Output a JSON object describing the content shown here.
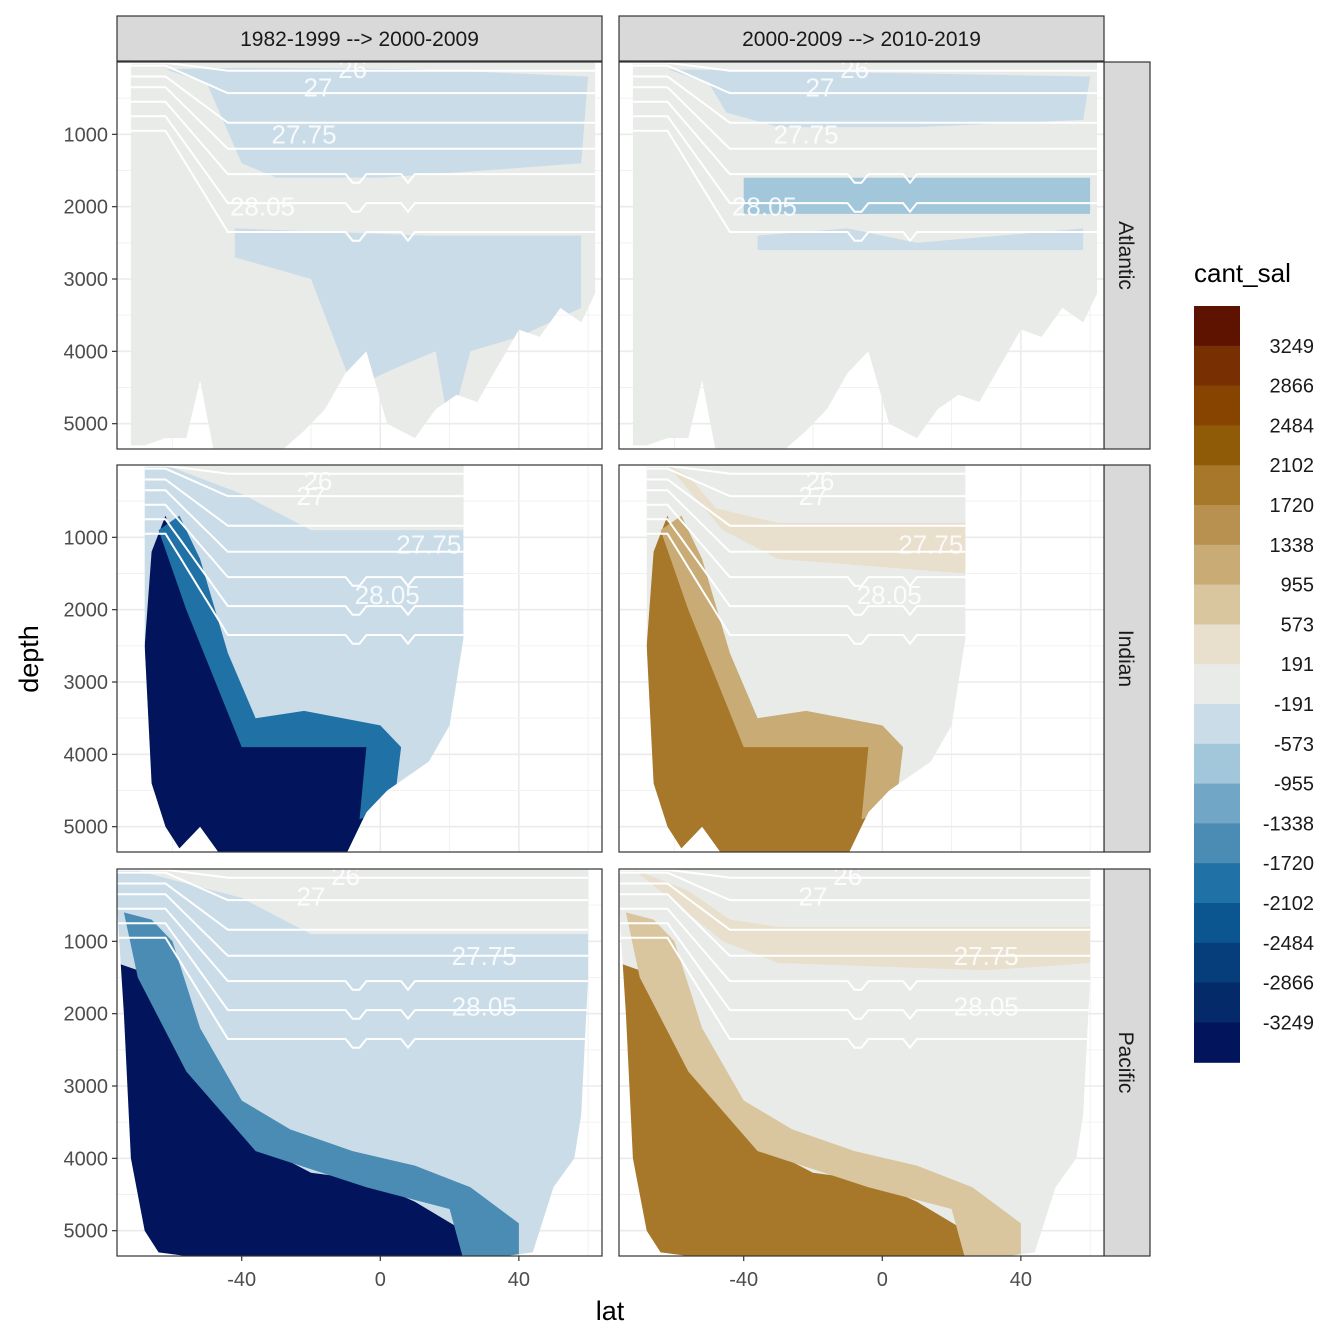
{
  "chart_data": {
    "type": "heatmap",
    "facet_columns": [
      "1982-1999 --> 2000-2009",
      "2000-2009 --> 2010-2019"
    ],
    "facet_rows": [
      "Atlantic",
      "Indian",
      "Pacific"
    ],
    "xlabel": "lat",
    "ylabel": "depth",
    "x_ticks": [
      "-40",
      "0",
      "40"
    ],
    "y_ticks": [
      "1000",
      "2000",
      "3000",
      "4000",
      "5000"
    ],
    "xlim": [
      -76,
      64
    ],
    "ylim_depth": [
      5350,
      0
    ],
    "grid": true,
    "legend": {
      "title": "cant_sal",
      "position": "right",
      "breaks": [
        "3249",
        "2866",
        "2484",
        "2102",
        "1720",
        "1338",
        "955",
        "573",
        "191",
        "-191",
        "-573",
        "-955",
        "-1338",
        "-1720",
        "-2102",
        "-2484",
        "-2866",
        "-3249"
      ],
      "colors": [
        "#5e1300",
        "#782f02",
        "#874400",
        "#8f5b06",
        "#a8782a",
        "#b89150",
        "#c8ab75",
        "#d9c59e",
        "#e8dfcc",
        "#e9ebe8",
        "#c9dce8",
        "#a2c6da",
        "#71a6c7",
        "#4a8cb4",
        "#2071a6",
        "#0b5590",
        "#063e7c",
        "#042a6a",
        "#02155c"
      ]
    },
    "isopycnal_labels": [
      "26",
      "27",
      "27.75",
      "28.05"
    ],
    "panels": [
      {
        "basin": "Atlantic",
        "period": "1982-1999 --> 2000-2009",
        "background_value": -100,
        "features": [
          {
            "desc": "thermocline and intermediate waters",
            "value": -300
          },
          {
            "desc": "deep layer near 28.05",
            "value": 100
          },
          {
            "desc": "abyssal north of equator",
            "value": -300
          }
        ]
      },
      {
        "basin": "Atlantic",
        "period": "2000-2009 --> 2010-2019",
        "background_value": -100,
        "features": [
          {
            "desc": "upper thermocline",
            "value": -300
          },
          {
            "desc": "deep layer near 28.05",
            "value": -700
          }
        ]
      },
      {
        "basin": "Indian",
        "period": "1982-1999 --> 2000-2009",
        "background_value": -300,
        "features": [
          {
            "desc": "surface waters",
            "value": -100
          },
          {
            "desc": "southern deep and bottom waters",
            "value": -3400
          }
        ]
      },
      {
        "basin": "Indian",
        "period": "2000-2009 --> 2010-2019",
        "background_value": -100,
        "features": [
          {
            "desc": "intermediate waters",
            "value": 400
          },
          {
            "desc": "southern deep and bottom waters",
            "value": 2000
          }
        ]
      },
      {
        "basin": "Pacific",
        "period": "1982-1999 --> 2000-2009",
        "background_value": -300,
        "features": [
          {
            "desc": "surface waters",
            "value": -100
          },
          {
            "desc": "southern deep and bottom waters",
            "value": -3400
          }
        ]
      },
      {
        "basin": "Pacific",
        "period": "2000-2009 --> 2010-2019",
        "background_value": -100,
        "features": [
          {
            "desc": "intermediate waters",
            "value": 400
          },
          {
            "desc": "southern deep and bottom waters",
            "value": 2000
          }
        ]
      }
    ]
  }
}
